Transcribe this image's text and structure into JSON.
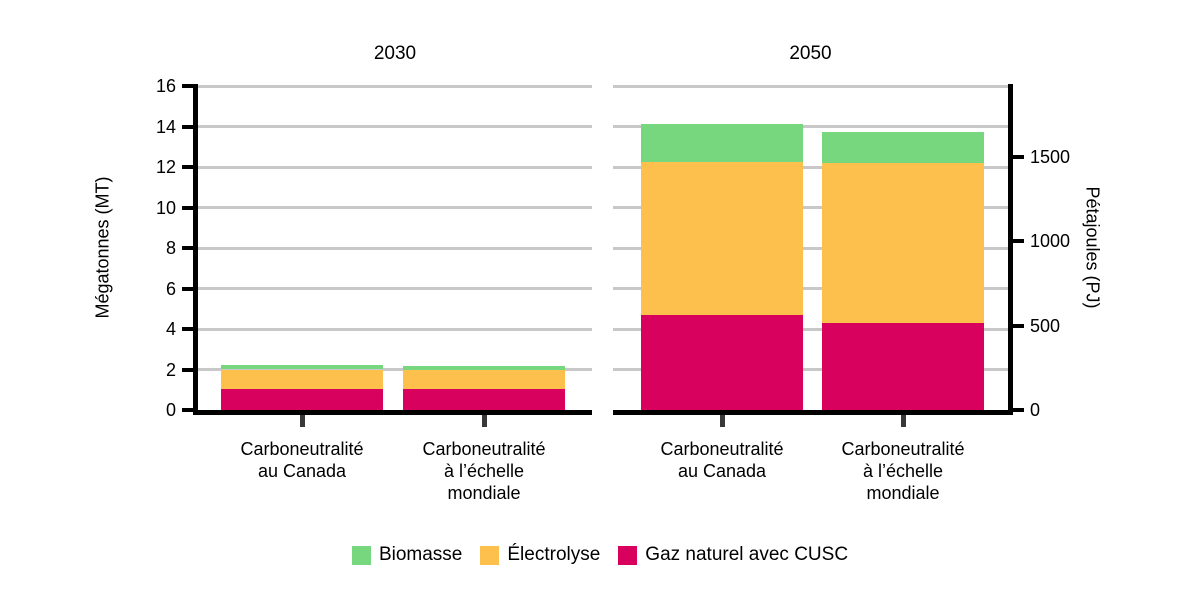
{
  "chart_data": {
    "type": "bar",
    "stacked": true,
    "title": "",
    "ylabel_left": "Mégatonnes (MT)",
    "ylabel_right": "Pétajoules (PJ)",
    "ylim_left": [
      0,
      16
    ],
    "yticks_left": [
      0,
      2,
      4,
      6,
      8,
      10,
      12,
      14,
      16
    ],
    "ylim_right": [
      0,
      1920
    ],
    "yticks_right": [
      0,
      500,
      1000,
      1500
    ],
    "grid": true,
    "legend_position": "bottom",
    "stack_order": "series listed bottom-to-top",
    "panels": [
      {
        "title": "2030",
        "categories": [
          [
            "Carboneutralité",
            "au Canada"
          ],
          [
            "Carboneutralité",
            "à l’échelle",
            "mondiale"
          ]
        ],
        "series": [
          {
            "name": "Gaz naturel avec CUSC",
            "values": [
              1.05,
              1.05
            ]
          },
          {
            "name": "Électrolyse",
            "values": [
              0.95,
              0.93
            ]
          },
          {
            "name": "Biomasse",
            "values": [
              0.2,
              0.17
            ]
          }
        ]
      },
      {
        "title": "2050",
        "categories": [
          [
            "Carboneutralité",
            "au Canada"
          ],
          [
            "Carboneutralité",
            "à l’échelle",
            "mondiale"
          ]
        ],
        "series": [
          {
            "name": "Gaz naturel avec CUSC",
            "values": [
              4.7,
              4.3
            ]
          },
          {
            "name": "Électrolyse",
            "values": [
              7.55,
              7.9
            ]
          },
          {
            "name": "Biomasse",
            "values": [
              1.85,
              1.55
            ]
          }
        ]
      }
    ],
    "legend": [
      {
        "label": "Biomasse",
        "color": "#76d77e"
      },
      {
        "label": "Électrolyse",
        "color": "#fec04d"
      },
      {
        "label": "Gaz naturel avec CUSC",
        "color": "#d8015e"
      }
    ],
    "colors": {
      "axis": "#000000",
      "gridline": "#c8c8c8",
      "bottom_tick": "#383838",
      "text": "#000000"
    }
  }
}
